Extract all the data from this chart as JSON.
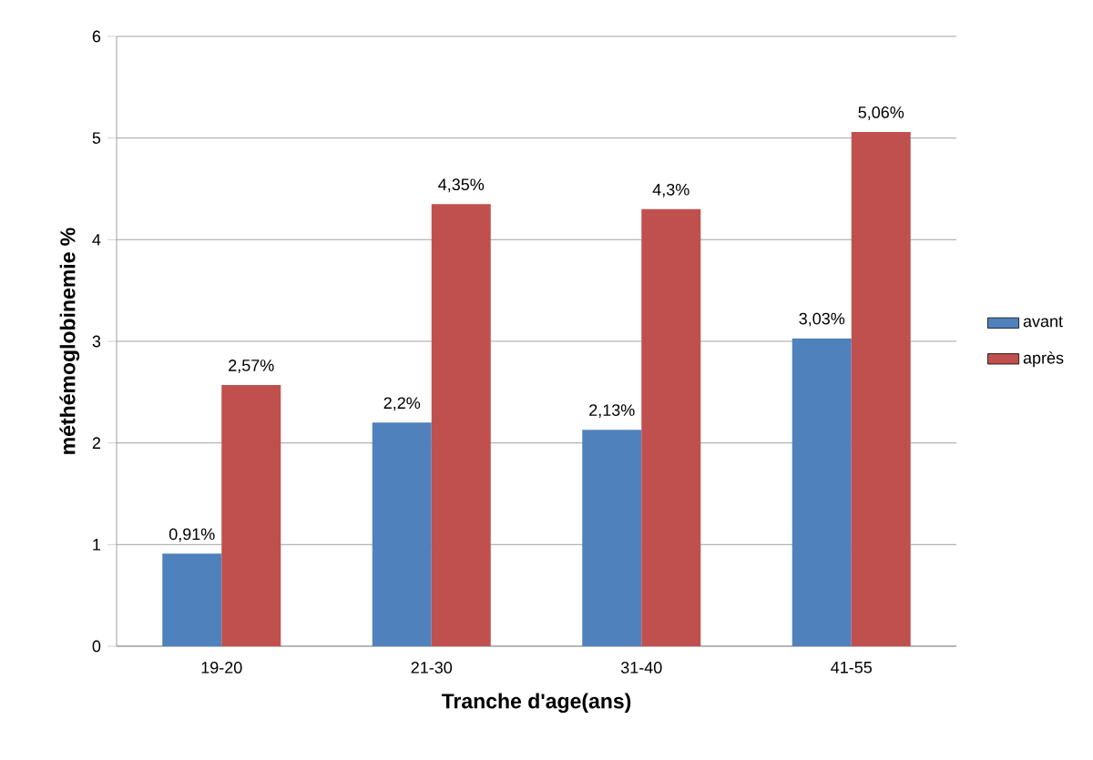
{
  "chart_data": {
    "type": "bar",
    "xlabel": "Tranche d'age(ans)",
    "ylabel": "méthémoglobinemie %",
    "categories": [
      "19-20",
      "21-30",
      "31-40",
      "41-55"
    ],
    "series": [
      {
        "name": "avant",
        "color": "#4f81bd",
        "values": [
          0.91,
          2.2,
          2.13,
          3.03
        ],
        "value_labels": [
          "0,91%",
          "2,2%",
          "2,13%",
          "3,03%"
        ]
      },
      {
        "name": "après",
        "color": "#c0504d",
        "values": [
          2.57,
          4.35,
          4.3,
          5.06
        ],
        "value_labels": [
          "2,57%",
          "4,35%",
          "4,3%",
          "5,06%"
        ]
      }
    ],
    "ylim": [
      0,
      6
    ],
    "yticks": [
      0,
      1,
      2,
      3,
      4,
      5,
      6
    ],
    "grid": "y",
    "legend": "right"
  }
}
